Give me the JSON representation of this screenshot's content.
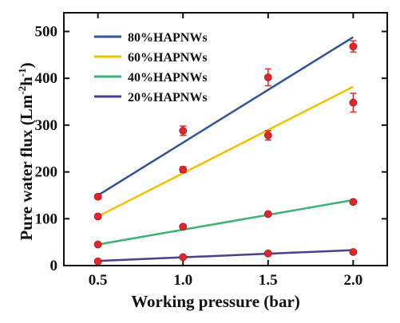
{
  "chart_data": {
    "type": "scatter",
    "xlabel": "Working pressure (bar)",
    "ylabel_base": "Pure water flux (Lm",
    "ylabel_sup1": "-2",
    "ylabel_mid": "h",
    "ylabel_sup2": "-1",
    "ylabel_end": ")",
    "xlim": [
      0.3,
      2.2
    ],
    "ylim": [
      0,
      540
    ],
    "xticks": [
      0.5,
      1.0,
      1.5,
      2.0
    ],
    "xtick_labels": [
      "0.5",
      "1.0",
      "1.5",
      "2.0"
    ],
    "yticks": [
      0,
      100,
      200,
      300,
      400,
      500
    ],
    "ytick_labels": [
      "0",
      "100",
      "200",
      "300",
      "400",
      "500"
    ],
    "legend_position": "top-left",
    "point_color": "#e0262b",
    "x": [
      0.5,
      1.0,
      1.5,
      2.0
    ],
    "series": [
      {
        "name": "80%HAPNWs",
        "color": "#2f5597",
        "values": [
          147,
          288,
          402,
          468
        ],
        "errors": [
          5,
          10,
          18,
          12
        ],
        "fit": [
          150,
          488
        ]
      },
      {
        "name": "60%HAPNWs",
        "color": "#f2c200",
        "values": [
          105,
          205,
          278,
          348
        ],
        "errors": [
          4,
          6,
          10,
          20
        ],
        "fit": [
          105,
          382
        ]
      },
      {
        "name": "40%HAPNWs",
        "color": "#3cb371",
        "values": [
          45,
          83,
          110,
          136
        ],
        "errors": [
          2,
          3,
          4,
          4
        ],
        "fit": [
          45,
          140
        ]
      },
      {
        "name": "20%HAPNWs",
        "color": "#4b3f8f",
        "values": [
          9,
          18,
          26,
          29
        ],
        "errors": [
          1,
          1,
          1,
          1
        ],
        "fit": [
          10,
          33
        ]
      }
    ]
  }
}
